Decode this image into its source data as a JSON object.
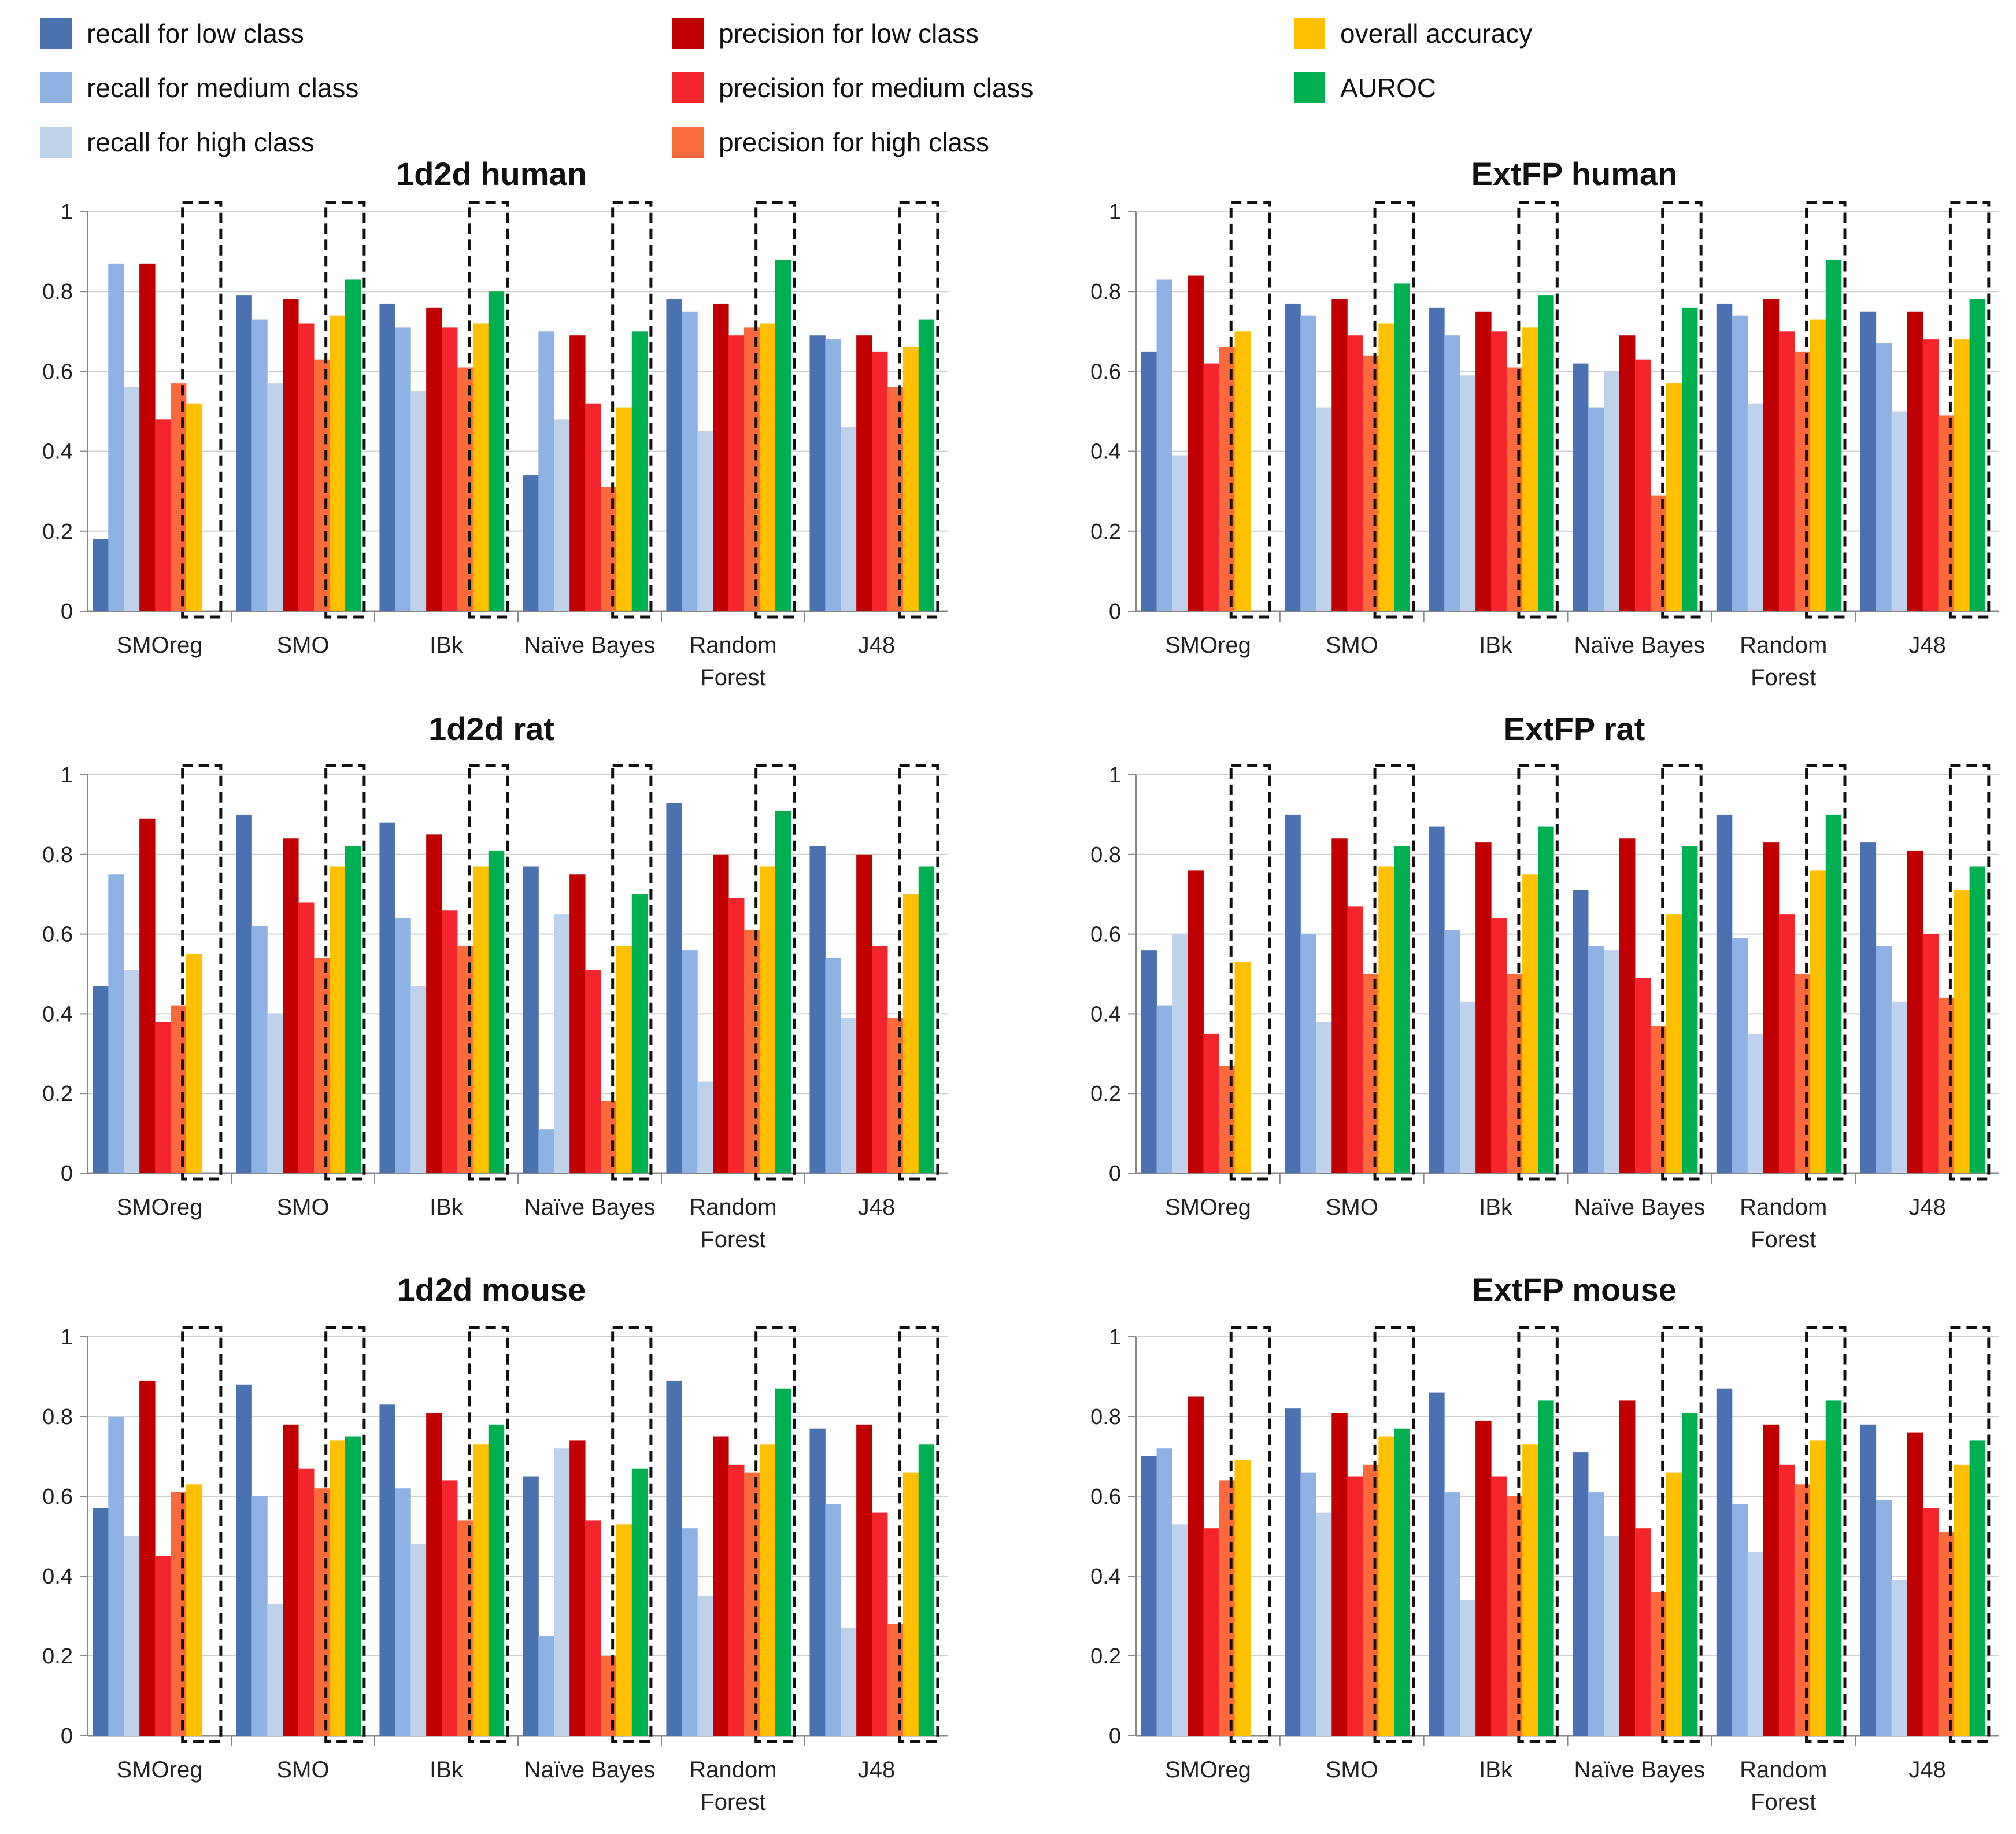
{
  "legend": [
    {
      "label": "recall for low class",
      "color": "#4a72b0"
    },
    {
      "label": "recall for medium class",
      "color": "#8db2e3"
    },
    {
      "label": "recall for high class",
      "color": "#bfd2ec"
    },
    {
      "label": "precision for low class",
      "color": "#c00000"
    },
    {
      "label": "precision for medium class",
      "color": "#f4252c"
    },
    {
      "label": "precision for high class",
      "color": "#fb6a3c"
    },
    {
      "label": "overall accuracy",
      "color": "#ffc000"
    },
    {
      "label": "AUROC",
      "color": "#00b050"
    }
  ],
  "chart_data": [
    {
      "type": "bar",
      "title": "1d2d human",
      "categories": [
        "SMOreg",
        "SMO",
        "IBk",
        "Naïve Bayes",
        "Random Forest",
        "J48"
      ],
      "ylim": [
        0,
        1
      ],
      "yticks": [
        "0",
        "0.2",
        "0.4",
        "0.6",
        "0.8",
        "1"
      ],
      "values": [
        [
          0.18,
          0.87,
          0.56,
          0.87,
          0.48,
          0.57,
          0.52,
          null
        ],
        [
          0.79,
          0.73,
          0.57,
          0.78,
          0.72,
          0.63,
          0.74,
          0.83
        ],
        [
          0.77,
          0.71,
          0.55,
          0.76,
          0.71,
          0.61,
          0.72,
          0.8
        ],
        [
          0.34,
          0.7,
          0.48,
          0.69,
          0.52,
          0.31,
          0.51,
          0.7
        ],
        [
          0.78,
          0.75,
          0.45,
          0.77,
          0.69,
          0.71,
          0.72,
          0.88
        ],
        [
          0.69,
          0.68,
          0.46,
          0.69,
          0.65,
          0.56,
          0.66,
          0.73
        ]
      ]
    },
    {
      "type": "bar",
      "title": "ExtFP human",
      "categories": [
        "SMOreg",
        "SMO",
        "IBk",
        "Naïve Bayes",
        "Random Forest",
        "J48"
      ],
      "ylim": [
        0,
        1
      ],
      "yticks": [
        "0",
        "0.2",
        "0.4",
        "0.6",
        "0.8",
        "1"
      ],
      "values": [
        [
          0.65,
          0.83,
          0.39,
          0.84,
          0.62,
          0.66,
          0.7,
          null
        ],
        [
          0.77,
          0.74,
          0.51,
          0.78,
          0.69,
          0.64,
          0.72,
          0.82
        ],
        [
          0.76,
          0.69,
          0.59,
          0.75,
          0.7,
          0.61,
          0.71,
          0.79
        ],
        [
          0.62,
          0.51,
          0.6,
          0.69,
          0.63,
          0.29,
          0.57,
          0.76
        ],
        [
          0.77,
          0.74,
          0.52,
          0.78,
          0.7,
          0.65,
          0.73,
          0.88
        ],
        [
          0.75,
          0.67,
          0.5,
          0.75,
          0.68,
          0.49,
          0.68,
          0.78
        ]
      ]
    },
    {
      "type": "bar",
      "title": "1d2d rat",
      "categories": [
        "SMOreg",
        "SMO",
        "IBk",
        "Naïve Bayes",
        "Random Forest",
        "J48"
      ],
      "ylim": [
        0,
        1
      ],
      "yticks": [
        "0",
        "0.2",
        "0.4",
        "0.6",
        "0.8",
        "1"
      ],
      "values": [
        [
          0.47,
          0.75,
          0.51,
          0.89,
          0.38,
          0.42,
          0.55,
          null
        ],
        [
          0.9,
          0.62,
          0.4,
          0.84,
          0.68,
          0.54,
          0.77,
          0.82
        ],
        [
          0.88,
          0.64,
          0.47,
          0.85,
          0.66,
          0.57,
          0.77,
          0.81
        ],
        [
          0.77,
          0.11,
          0.65,
          0.75,
          0.51,
          0.18,
          0.57,
          0.7
        ],
        [
          0.93,
          0.56,
          0.23,
          0.8,
          0.69,
          0.61,
          0.77,
          0.91
        ],
        [
          0.82,
          0.54,
          0.39,
          0.8,
          0.57,
          0.39,
          0.7,
          0.77
        ]
      ]
    },
    {
      "type": "bar",
      "title": "ExtFP rat",
      "categories": [
        "SMOreg",
        "SMO",
        "IBk",
        "Naïve Bayes",
        "Random Forest",
        "J48"
      ],
      "ylim": [
        0,
        1
      ],
      "yticks": [
        "0",
        "0.2",
        "0.4",
        "0.6",
        "0.8",
        "1"
      ],
      "values": [
        [
          0.56,
          0.42,
          0.6,
          0.76,
          0.35,
          0.27,
          0.53,
          null
        ],
        [
          0.9,
          0.6,
          0.38,
          0.84,
          0.67,
          0.5,
          0.77,
          0.82
        ],
        [
          0.87,
          0.61,
          0.43,
          0.83,
          0.64,
          0.5,
          0.75,
          0.87
        ],
        [
          0.71,
          0.57,
          0.56,
          0.84,
          0.49,
          0.37,
          0.65,
          0.82
        ],
        [
          0.9,
          0.59,
          0.35,
          0.83,
          0.65,
          0.5,
          0.76,
          0.9
        ],
        [
          0.83,
          0.57,
          0.43,
          0.81,
          0.6,
          0.44,
          0.71,
          0.77
        ]
      ]
    },
    {
      "type": "bar",
      "title": "1d2d mouse",
      "categories": [
        "SMOreg",
        "SMO",
        "IBk",
        "Naïve Bayes",
        "Random Forest",
        "J48"
      ],
      "ylim": [
        0,
        1
      ],
      "yticks": [
        "0",
        "0.2",
        "0.4",
        "0.6",
        "0.8",
        "1"
      ],
      "values": [
        [
          0.57,
          0.8,
          0.5,
          0.89,
          0.45,
          0.61,
          0.63,
          null
        ],
        [
          0.88,
          0.6,
          0.33,
          0.78,
          0.67,
          0.62,
          0.74,
          0.75
        ],
        [
          0.83,
          0.62,
          0.48,
          0.81,
          0.64,
          0.54,
          0.73,
          0.78
        ],
        [
          0.65,
          0.25,
          0.72,
          0.74,
          0.54,
          0.2,
          0.53,
          0.67
        ],
        [
          0.89,
          0.52,
          0.35,
          0.75,
          0.68,
          0.66,
          0.73,
          0.87
        ],
        [
          0.77,
          0.58,
          0.27,
          0.78,
          0.56,
          0.28,
          0.66,
          0.73
        ]
      ]
    },
    {
      "type": "bar",
      "title": "ExtFP mouse",
      "categories": [
        "SMOreg",
        "SMO",
        "IBk",
        "Naïve Bayes",
        "Random Forest",
        "J48"
      ],
      "ylim": [
        0,
        1
      ],
      "yticks": [
        "0",
        "0.2",
        "0.4",
        "0.6",
        "0.8",
        "1"
      ],
      "values": [
        [
          0.7,
          0.72,
          0.53,
          0.85,
          0.52,
          0.64,
          0.69,
          null
        ],
        [
          0.82,
          0.66,
          0.56,
          0.81,
          0.65,
          0.68,
          0.75,
          0.77
        ],
        [
          0.86,
          0.61,
          0.34,
          0.79,
          0.65,
          0.6,
          0.73,
          0.84
        ],
        [
          0.71,
          0.61,
          0.5,
          0.84,
          0.52,
          0.36,
          0.66,
          0.81
        ],
        [
          0.87,
          0.58,
          0.46,
          0.78,
          0.68,
          0.63,
          0.74,
          0.84
        ],
        [
          0.78,
          0.59,
          0.39,
          0.76,
          0.57,
          0.51,
          0.68,
          0.74
        ]
      ]
    }
  ]
}
